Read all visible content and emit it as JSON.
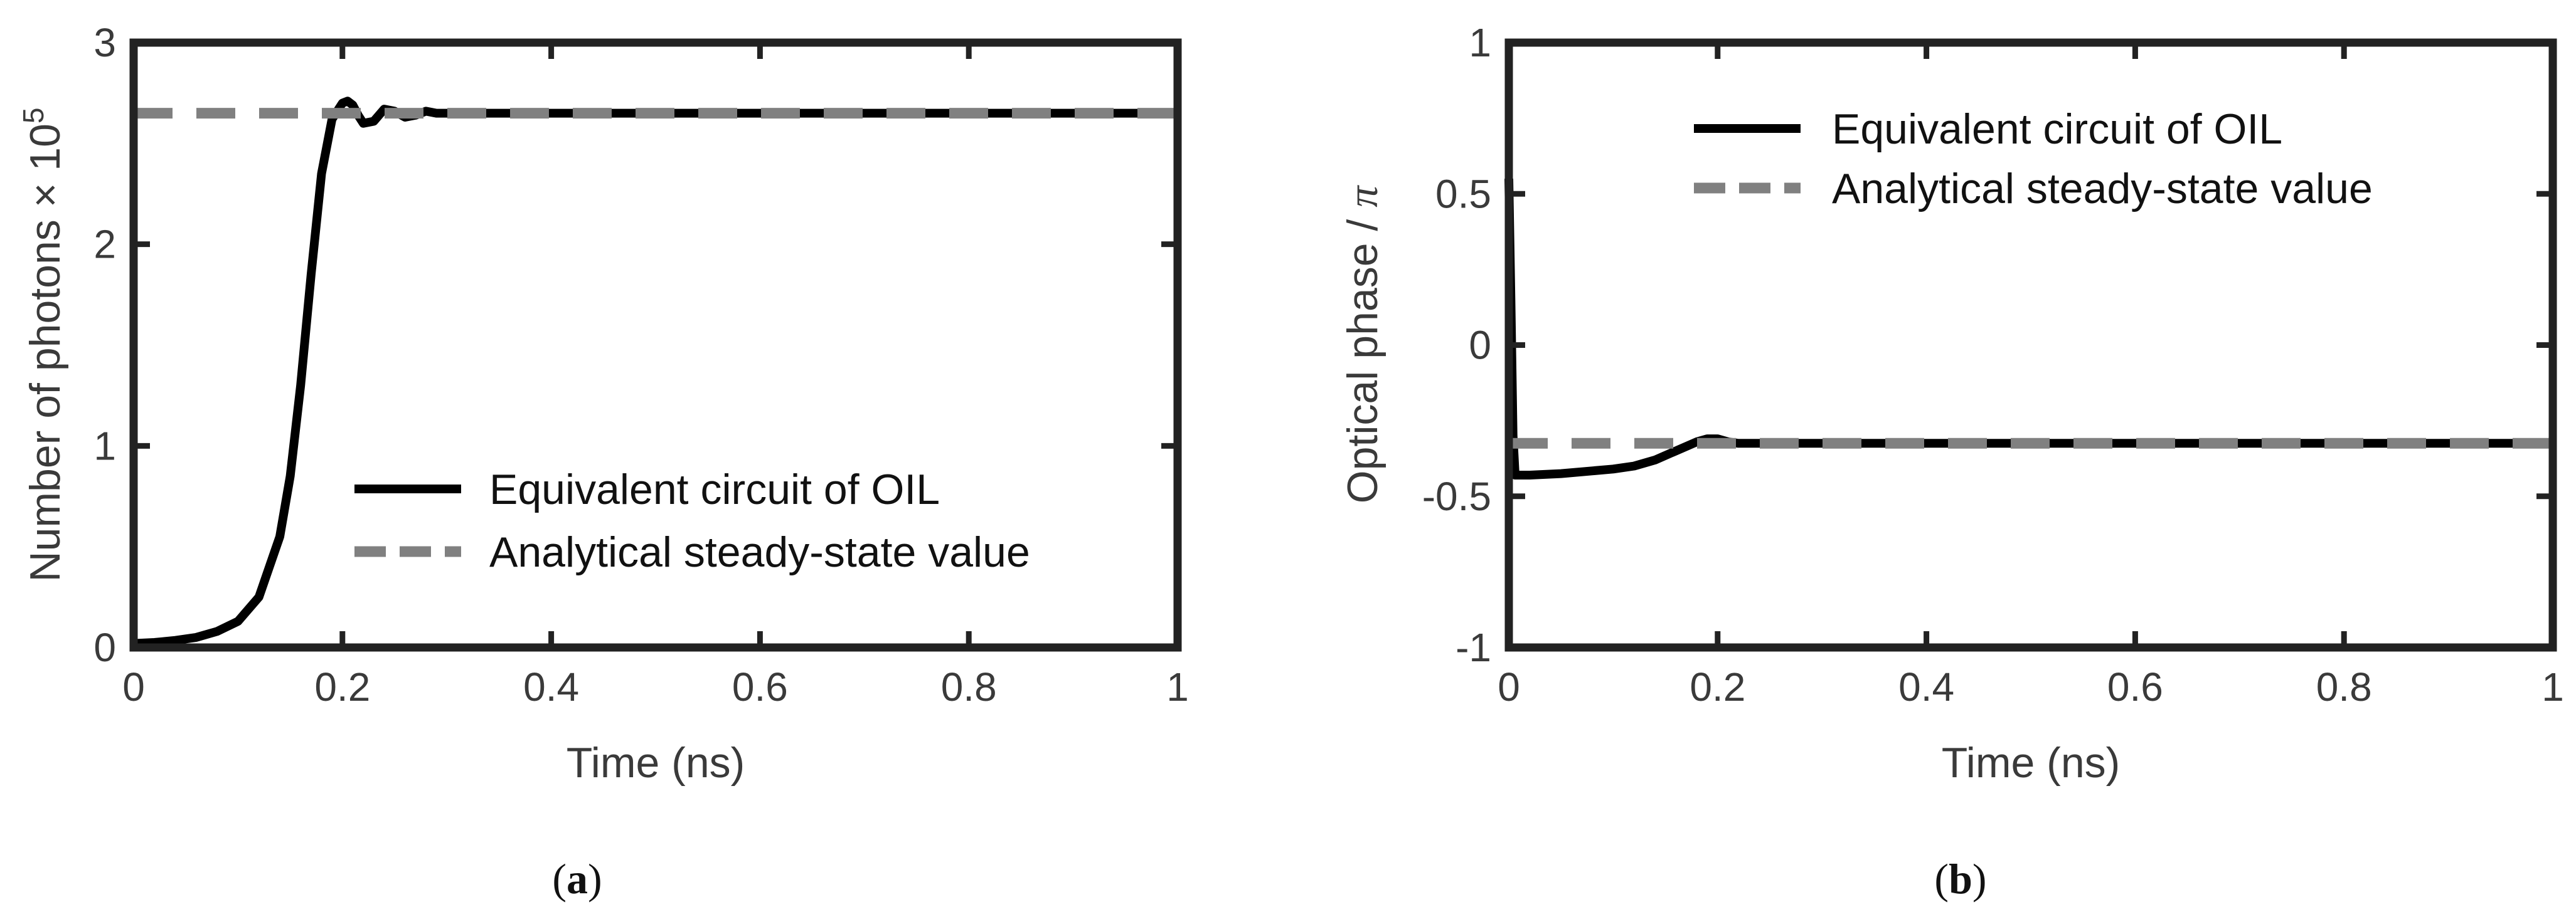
{
  "chart_data": [
    {
      "type": "line",
      "panel_label": "a",
      "xlabel": "Time (ns)",
      "ylabel": "Number of photons × 10",
      "ylabel_exponent": "5",
      "xlim": [
        0,
        1
      ],
      "ylim": [
        0,
        3
      ],
      "xticks": [
        0,
        0.2,
        0.4,
        0.6,
        0.8,
        1
      ],
      "xtick_labels": [
        "0",
        "0.2",
        "0.4",
        "0.6",
        "0.8",
        "1"
      ],
      "yticks": [
        0,
        1,
        2,
        3
      ],
      "ytick_labels": [
        "0",
        "1",
        "2",
        "3"
      ],
      "grid": false,
      "legend_position": "bottom-right",
      "series": [
        {
          "name": "Equivalent circuit of OIL",
          "style": "solid",
          "color": "#000000",
          "x": [
            0,
            0.02,
            0.04,
            0.06,
            0.08,
            0.1,
            0.12,
            0.14,
            0.15,
            0.16,
            0.17,
            0.18,
            0.19,
            0.2,
            0.205,
            0.21,
            0.215,
            0.22,
            0.23,
            0.24,
            0.25,
            0.26,
            0.27,
            0.28,
            0.29,
            0.3,
            0.35,
            0.4,
            0.5,
            0.6,
            0.7,
            0.8,
            0.9,
            1.0
          ],
          "y": [
            0.02,
            0.025,
            0.035,
            0.05,
            0.08,
            0.13,
            0.25,
            0.55,
            0.85,
            1.3,
            1.85,
            2.35,
            2.62,
            2.7,
            2.71,
            2.69,
            2.64,
            2.6,
            2.61,
            2.67,
            2.66,
            2.63,
            2.64,
            2.66,
            2.65,
            2.65,
            2.65,
            2.65,
            2.65,
            2.65,
            2.65,
            2.65,
            2.65,
            2.65
          ]
        },
        {
          "name": "Analytical steady-state value",
          "style": "dashed",
          "color": "#808080",
          "x": [
            0,
            1
          ],
          "y": [
            2.65,
            2.65
          ]
        }
      ]
    },
    {
      "type": "line",
      "panel_label": "b",
      "xlabel": "Time (ns)",
      "ylabel": "Optical phase / ",
      "ylabel_symbol": "π",
      "xlim": [
        0,
        1
      ],
      "ylim": [
        -1,
        1
      ],
      "xticks": [
        0,
        0.2,
        0.4,
        0.6,
        0.8,
        1
      ],
      "xtick_labels": [
        "0",
        "0.2",
        "0.4",
        "0.6",
        "0.8",
        "1"
      ],
      "yticks": [
        -1,
        -0.5,
        0,
        0.5,
        1
      ],
      "ytick_labels": [
        "-1",
        "-0.5",
        "0",
        "0.5",
        "1"
      ],
      "grid": false,
      "legend_position": "top-right",
      "series": [
        {
          "name": "Equivalent circuit of OIL",
          "style": "solid",
          "color": "#000000",
          "x": [
            0,
            0.002,
            0.004,
            0.006,
            0.01,
            0.02,
            0.05,
            0.1,
            0.12,
            0.14,
            0.16,
            0.18,
            0.19,
            0.2,
            0.21,
            0.22,
            0.25,
            0.3,
            0.4,
            0.6,
            0.8,
            1.0
          ],
          "y": [
            0.55,
            0.15,
            -0.3,
            -0.43,
            -0.43,
            -0.43,
            -0.425,
            -0.41,
            -0.4,
            -0.38,
            -0.35,
            -0.32,
            -0.31,
            -0.31,
            -0.32,
            -0.325,
            -0.325,
            -0.325,
            -0.325,
            -0.325,
            -0.325,
            -0.325
          ]
        },
        {
          "name": "Analytical steady-state value",
          "style": "dashed",
          "color": "#808080",
          "x": [
            0,
            1
          ],
          "y": [
            -0.325,
            -0.325
          ]
        }
      ]
    }
  ]
}
